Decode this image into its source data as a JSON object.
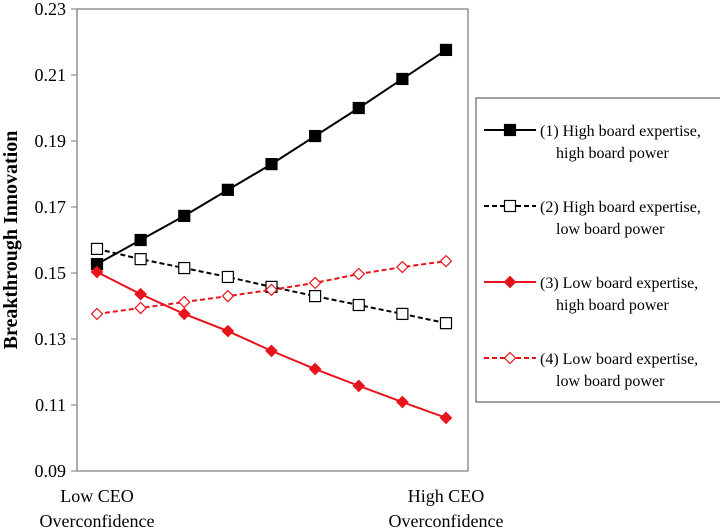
{
  "chart_data": {
    "type": "line",
    "title": "",
    "ylabel": "Breakthrough Innovation",
    "xlabel": "",
    "x_tick_labels": [
      {
        "line1": "Low CEO",
        "line2": "Overconfidence"
      },
      {
        "line1": "High CEO",
        "line2": "Overconfidence"
      }
    ],
    "ylim": [
      0.09,
      0.23
    ],
    "yticks": [
      "0.09",
      "0.11",
      "0.13",
      "0.15",
      "0.17",
      "0.19",
      "0.21",
      "0.23"
    ],
    "grid": false,
    "legend_placement": "right",
    "x": [
      1,
      2,
      3,
      4,
      5,
      6,
      7,
      8,
      9
    ],
    "series": [
      {
        "name_line1": "(1) High board expertise,",
        "name_line2": "high board power",
        "color": "#000000",
        "dash": "solid",
        "marker": "filled-square",
        "values": [
          0.1527,
          0.16,
          0.1673,
          0.1752,
          0.183,
          0.1915,
          0.2,
          0.2088,
          0.2176
        ]
      },
      {
        "name_line1": "(2) High board expertise,",
        "name_line2": "low board power",
        "color": "#000000",
        "dash": "dashed",
        "marker": "open-square",
        "values": [
          0.1573,
          0.1542,
          0.1515,
          0.1488,
          0.1458,
          0.143,
          0.1403,
          0.1376,
          0.1348
        ]
      },
      {
        "name_line1": "(3) Low board expertise,",
        "name_line2": "high board power",
        "color": "#e8141c",
        "dash": "solid",
        "marker": "filled-diamond",
        "values": [
          0.1503,
          0.1436,
          0.1376,
          0.1324,
          0.1264,
          0.1209,
          0.1158,
          0.1109,
          0.1061
        ]
      },
      {
        "name_line1": "(4) Low board expertise,",
        "name_line2": "low board power",
        "color": "#e8141c",
        "dash": "dashed",
        "marker": "open-diamond",
        "values": [
          0.1376,
          0.1394,
          0.1412,
          0.143,
          0.1449,
          0.147,
          0.1497,
          0.1518,
          0.1536
        ]
      }
    ]
  }
}
